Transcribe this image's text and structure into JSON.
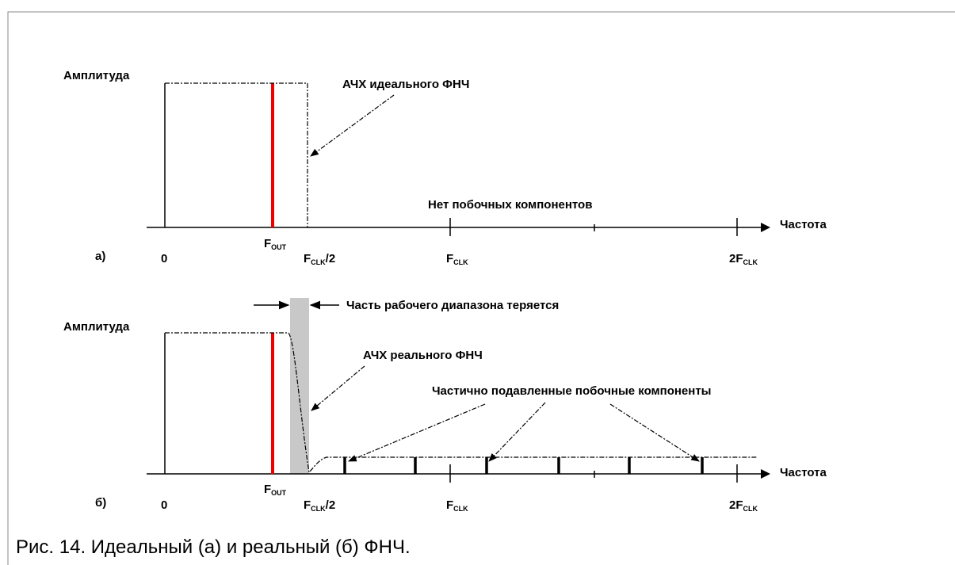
{
  "panel_a": {
    "y_label": "Амплитуда",
    "x_label": "Частота",
    "tag": "а)",
    "filter_label": "АЧХ идеального ФНЧ",
    "note": "Нет побочных компонентов",
    "ticks": [
      {
        "main": "0"
      },
      {
        "main": "F",
        "sub": "OUT"
      },
      {
        "main": "F",
        "sub": "CLK",
        "suffix": "/2"
      },
      {
        "main": "F",
        "sub": "CLK"
      },
      {
        "main": "2F",
        "sub": "CLK"
      }
    ]
  },
  "panel_b": {
    "y_label": "Амплитуда",
    "x_label": "Частота",
    "tag": "б)",
    "lost_label": "Часть рабочего диапазона теряется",
    "filter_label": "АЧХ реального ФНЧ",
    "note": "Частично подавленные побочные компоненты",
    "ticks": [
      {
        "main": "0"
      },
      {
        "main": "F",
        "sub": "OUT"
      },
      {
        "main": "F",
        "sub": "CLK",
        "suffix": "/2"
      },
      {
        "main": "F",
        "sub": "CLK"
      },
      {
        "main": "2F",
        "sub": "CLK"
      }
    ]
  },
  "caption": "Рис. 14. Идеальный (а) и реальный (б) ФНЧ."
}
